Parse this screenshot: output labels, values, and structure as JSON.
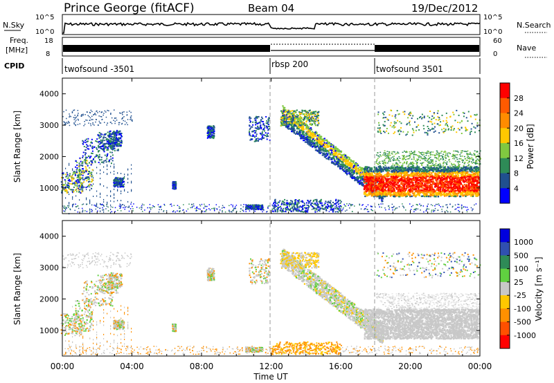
{
  "header": {
    "title": "Prince George (fitACF)",
    "beam": "Beam 04",
    "date": "19/Dec/2012"
  },
  "top_panels": {
    "nsky_label": "N.Sky",
    "nsky_ticks": [
      "10^5",
      "10^0"
    ],
    "nsearch_label": "N.Search",
    "nsearch_ticks": [
      "10^5",
      "10^0"
    ],
    "freq_label_1": "Freq.",
    "freq_label_2": "[MHz]",
    "freq_ticks": [
      "18",
      "8"
    ],
    "nave_label": "Nave",
    "nave_ticks": [
      "60",
      "0"
    ],
    "cpid_label": "CPID",
    "cpid_segments": [
      {
        "label": "twofsound -3501",
        "start_hour": 0,
        "end_hour": 12
      },
      {
        "label": "rbsp 200",
        "start_hour": 12,
        "end_hour": 18
      },
      {
        "label": "twofsound 3501",
        "start_hour": 18,
        "end_hour": 24
      }
    ]
  },
  "chart_data": [
    {
      "type": "heatmap",
      "name": "power",
      "ylabel": "Slant Range [km]",
      "y_ticks": [
        "1000",
        "2000",
        "3000",
        "4000"
      ],
      "ylim": [
        180,
        4500
      ],
      "xlim": [
        0,
        24
      ],
      "colorbar_label": "Power [dB]",
      "colorbar_ticks": [
        "28",
        "24",
        "20",
        "16",
        "12",
        "8",
        "4"
      ],
      "colorbar_colors": [
        "#ff0000",
        "#ff5a00",
        "#ff8c00",
        "#ffc800",
        "#80c840",
        "#2e8b57",
        "#20508f",
        "#0000ff"
      ]
    },
    {
      "type": "heatmap",
      "name": "velocity",
      "ylabel": "Slant Range [km]",
      "y_ticks": [
        "1000",
        "2000",
        "3000",
        "4000"
      ],
      "ylim": [
        180,
        4500
      ],
      "xlim": [
        0,
        24
      ],
      "colorbar_label": "Velocity [m s⁻¹]",
      "colorbar_ticks": [
        "1000",
        "500",
        "100",
        "25",
        "-25",
        "-100",
        "-500",
        "-1000"
      ],
      "colorbar_colors": [
        "#0000dd",
        "#3050b0",
        "#2e8b57",
        "#60d040",
        "#c8c8c8",
        "#ffc800",
        "#ff9000",
        "#ff5000",
        "#ff0000"
      ]
    }
  ],
  "x_axis": {
    "ticks": [
      "00:00",
      "04:00",
      "08:00",
      "12:00",
      "16:00",
      "20:00",
      "00:00"
    ],
    "label": "Time UT"
  },
  "colors": {
    "grey_scatter": "#c8c8c8",
    "red_core": "#e81010",
    "orange": "#ff8c00",
    "green": "#5aa040",
    "blue": "#1838a0"
  }
}
